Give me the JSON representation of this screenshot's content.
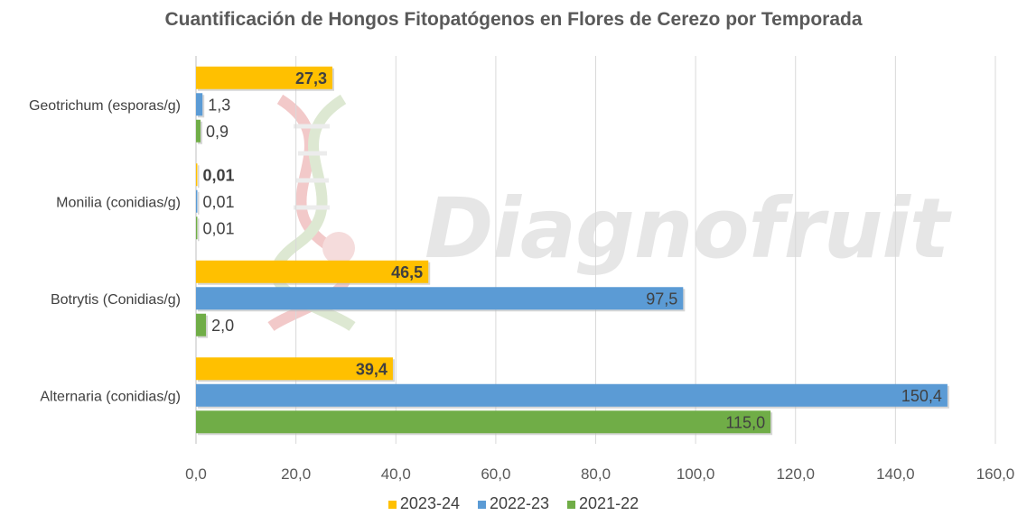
{
  "chart_data": {
    "type": "bar",
    "orientation": "horizontal",
    "title": "Cuantificación de Hongos Fitopatógenos en Flores de Cerezo por Temporada",
    "categories": [
      "Geotrichum (esporas/g)",
      "Monilia (conidias/g)",
      "Botrytis (Conidias/g)",
      "Alternaria (conidias/g)"
    ],
    "series": [
      {
        "name": "2023-24",
        "color": "#ffc000",
        "values": [
          27.3,
          0.01,
          46.5,
          39.4
        ],
        "labels": [
          "27,3",
          "0,01",
          "46,5",
          "39,4"
        ],
        "label_bold": true
      },
      {
        "name": "2022-23",
        "color": "#5b9bd5",
        "values": [
          1.3,
          0.01,
          97.5,
          150.4
        ],
        "labels": [
          "1,3",
          "0,01",
          "97,5",
          "150,4"
        ],
        "label_bold": false
      },
      {
        "name": "2021-22",
        "color": "#70ad47",
        "values": [
          0.9,
          0.01,
          2.0,
          115.0
        ],
        "labels": [
          "0,9",
          "0,01",
          "2,0",
          "115,0"
        ],
        "label_bold": false
      }
    ],
    "xlim": [
      0,
      160
    ],
    "x_ticks": [
      "0,0",
      "20,0",
      "40,0",
      "60,0",
      "80,0",
      "100,0",
      "120,0",
      "140,0",
      "160,0"
    ],
    "grid": true,
    "legend_position": "bottom"
  },
  "watermark": {
    "text": "Diagnofruit"
  }
}
